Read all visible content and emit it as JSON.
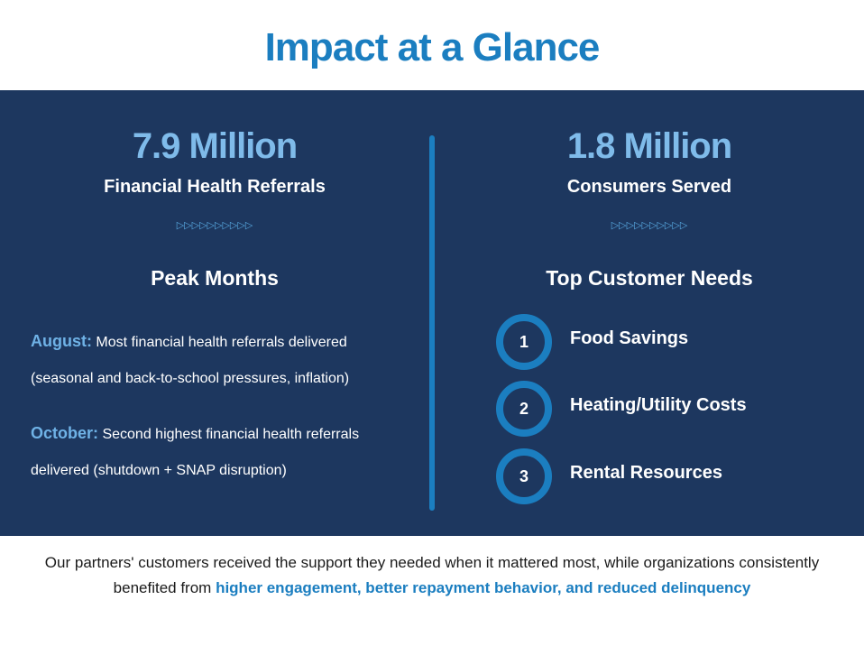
{
  "title": "Impact at a Glance",
  "left": {
    "stat": "7.9 Million",
    "stat_label": "Financial Health Referrals",
    "arrows": "▷▷▷▷▷▷▷▷▷▷",
    "section_title": "Peak Months",
    "peaks": [
      {
        "month": "August:",
        "text": " Most financial health referrals delivered (seasonal and back-to-school pressures, inflation)"
      },
      {
        "month": "October:",
        "text": " Second highest financial health referrals delivered (shutdown + SNAP disruption)"
      }
    ]
  },
  "right": {
    "stat": "1.8 Million",
    "stat_label": "Consumers Served",
    "arrows": "▷▷▷▷▷▷▷▷▷▷",
    "section_title": "Top Customer Needs",
    "needs": [
      {
        "rank": "1",
        "label": "Food Savings"
      },
      {
        "rank": "2",
        "label": "Heating/Utility Costs"
      },
      {
        "rank": "3",
        "label": "Rental Resources"
      }
    ]
  },
  "footer": {
    "text": "Our partners' customers received the support they needed when it mattered most, while organizations consistently benefited from ",
    "highlight": "higher engagement, better repayment behavior, and reduced delinquency"
  },
  "colors": {
    "accent_blue": "#1b7ec0",
    "panel_navy": "#1d375f",
    "stat_light_blue": "#7fbbea"
  }
}
